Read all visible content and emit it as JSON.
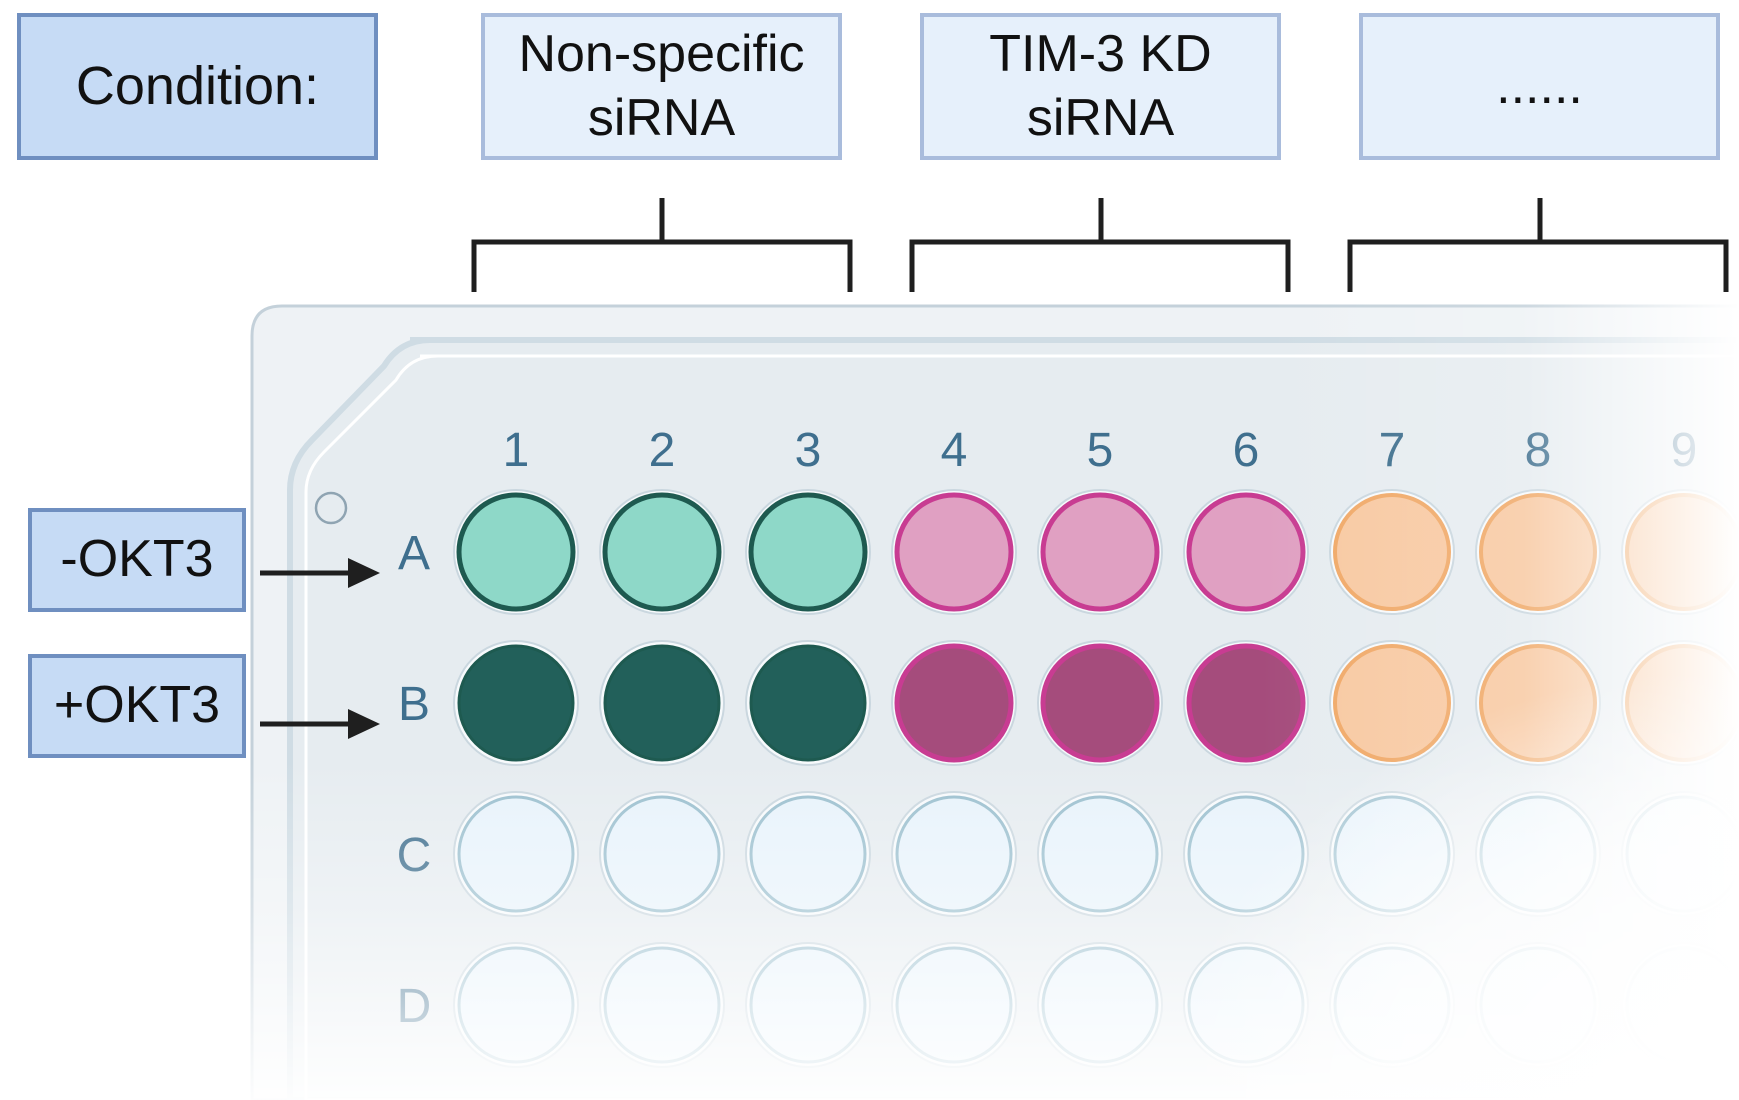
{
  "condition_header": "Condition:",
  "conditions": [
    {
      "label": "Non-specific\nsiRNA",
      "columns": [
        1,
        2,
        3
      ]
    },
    {
      "label": "TIM-3 KD\nsiRNA",
      "columns": [
        4,
        5,
        6
      ]
    },
    {
      "label": "......",
      "columns": [
        7,
        8,
        9
      ]
    }
  ],
  "row_treatments": [
    {
      "label": "-OKT3",
      "row": "A"
    },
    {
      "label": "+OKT3",
      "row": "B"
    }
  ],
  "plate": {
    "column_labels": [
      "1",
      "2",
      "3",
      "4",
      "5",
      "6",
      "7",
      "8",
      "9"
    ],
    "row_labels": [
      "A",
      "B",
      "C",
      "D"
    ],
    "colors": {
      "nonspecific_minus": "#8ed8c8",
      "nonspecific_plus": "#22605a",
      "nonspecific_ring": "#1e5a50",
      "tim3_minus": "#e0a0c2",
      "tim3_plus": "#a54c7c",
      "tim3_ring": "#c83c92",
      "other_fill": "#f8c9a2",
      "other_ring": "#f0a968",
      "empty_well": "#e8f3fb",
      "empty_ring": "#9cc0cf",
      "plate_body": "#eef2f5",
      "plate_edge": "#c4d1da",
      "label_text": "#3f6f8e"
    }
  }
}
